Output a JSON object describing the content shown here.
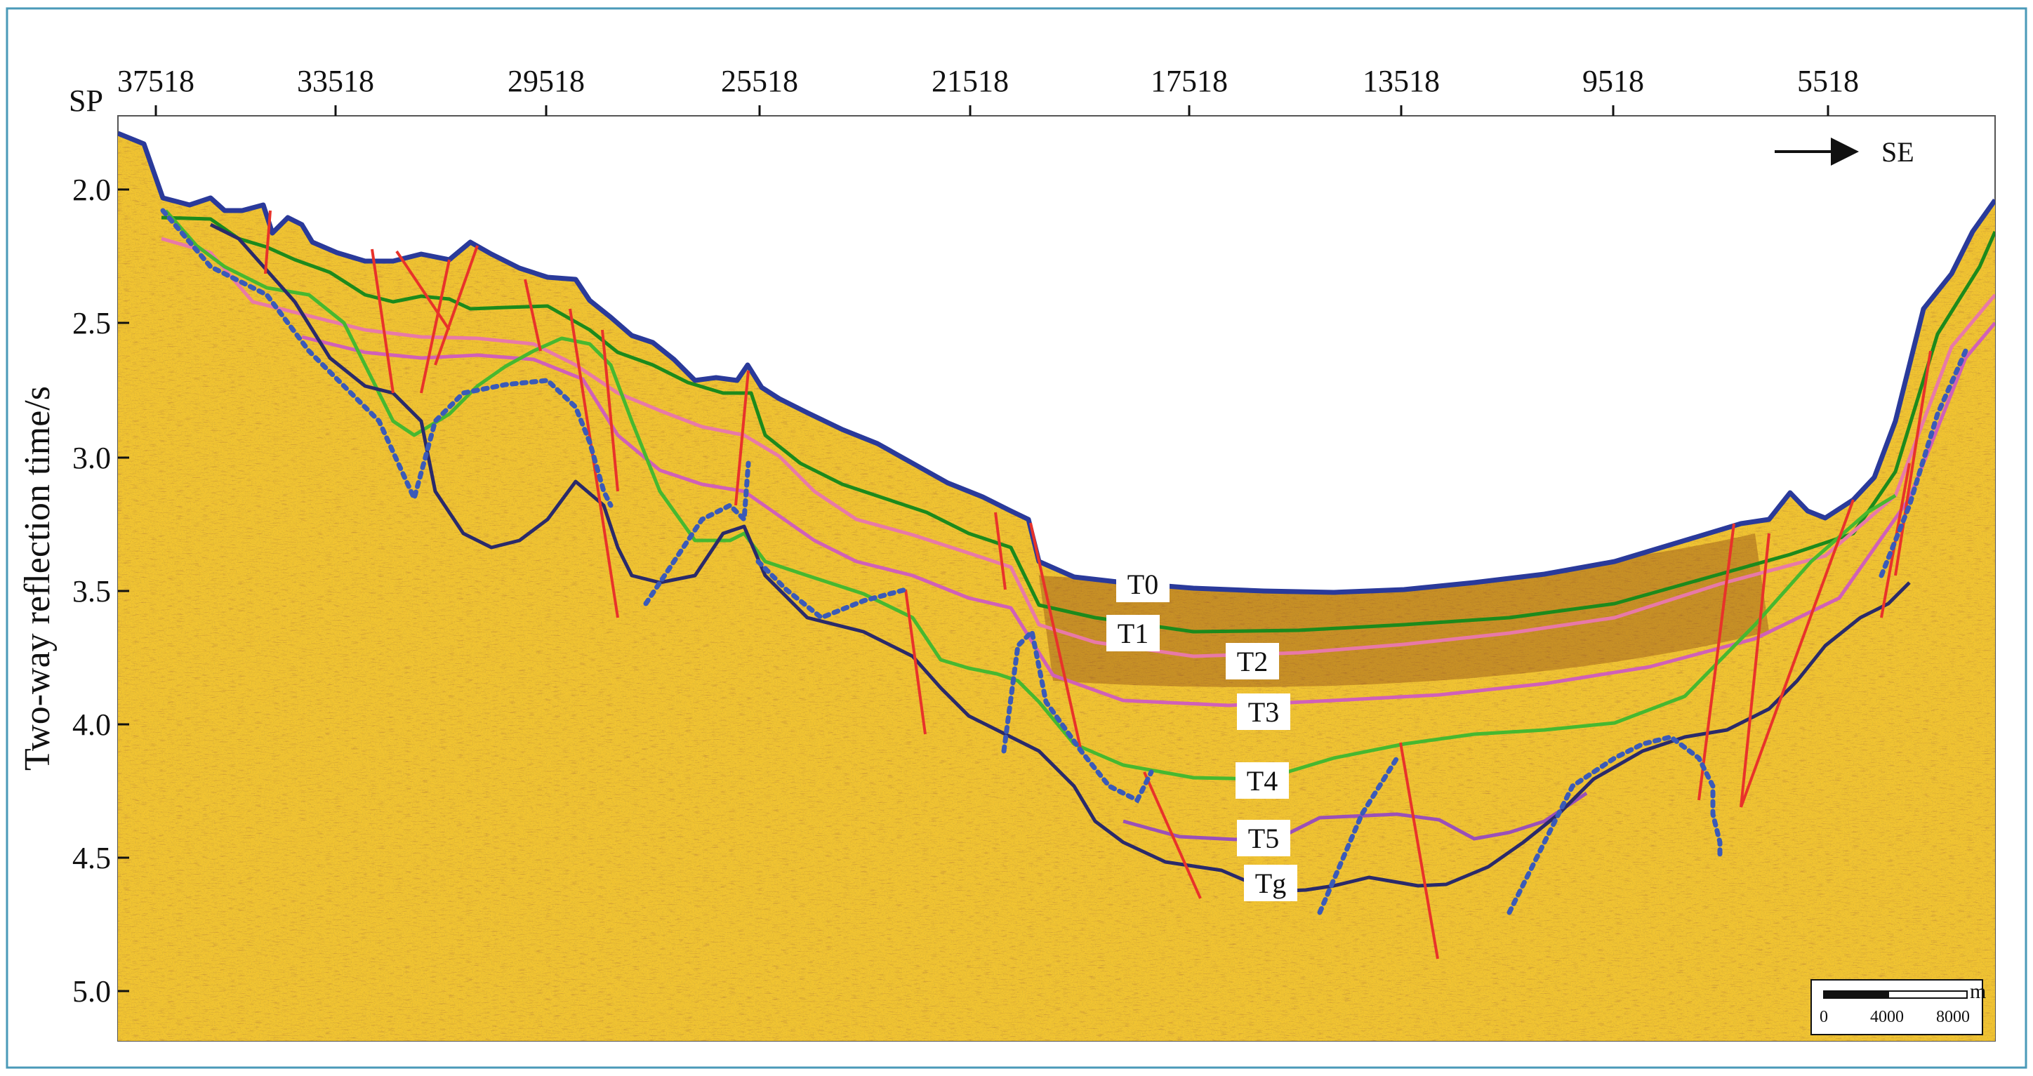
{
  "section": {
    "sp_prefix": "SP",
    "sp_ticks": [
      "37518",
      "33518",
      "29518",
      "25518",
      "21518",
      "17518",
      "13518",
      "9518",
      "5518"
    ],
    "y_axis_label": "Two-way reflection time/s",
    "y_ticks": [
      "2.0",
      "2.5",
      "3.0",
      "3.5",
      "4.0",
      "4.5",
      "5.0"
    ],
    "y_range": [
      1.9,
      5.15
    ],
    "direction_label": "SE",
    "direction_icon": "arrow-right-icon"
  },
  "horizons": [
    {
      "id": "T0",
      "label": "T0",
      "color": "#2a3a9a"
    },
    {
      "id": "T1",
      "label": "T1",
      "color": "#1c8a1c"
    },
    {
      "id": "T2",
      "label": "T2",
      "color": "#e879a8"
    },
    {
      "id": "T3",
      "label": "T3",
      "color": "#d060b8"
    },
    {
      "id": "T4",
      "label": "T4",
      "color": "#46b830"
    },
    {
      "id": "T5",
      "label": "T5",
      "color": "#9a50b8"
    },
    {
      "id": "Tg",
      "label": "Tg",
      "color": "#2a2a6a"
    }
  ],
  "fault_color": "#e8322a",
  "basement_dotted_color": "#3a5ab8",
  "scale_bar": {
    "unit": "m",
    "labels": [
      "0",
      "4000",
      "8000"
    ]
  }
}
